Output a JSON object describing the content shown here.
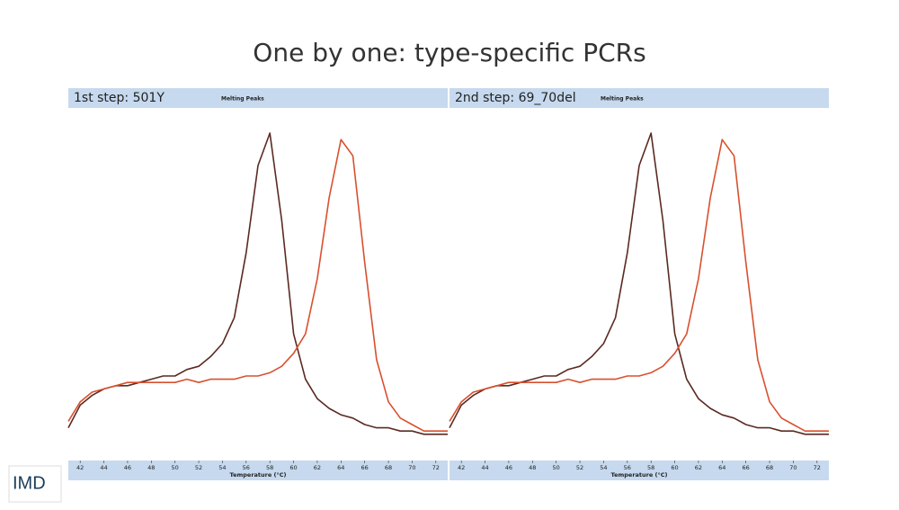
{
  "title": "One by one: type-specific PCRs",
  "logo": "IMD",
  "chart_data": [
    {
      "type": "line",
      "title": "1st step: 501Y",
      "subtitle": "Melting Peaks",
      "xlabel": "Temperature (°C)",
      "x": [
        41,
        42,
        43,
        44,
        45,
        46,
        47,
        48,
        49,
        50,
        51,
        52,
        53,
        54,
        55,
        56,
        57,
        58,
        59,
        60,
        61,
        62,
        63,
        64,
        65,
        66,
        67,
        68,
        69,
        70,
        71,
        72,
        73
      ],
      "series": [
        {
          "color": "#5a2a22",
          "values": [
            0.04,
            0.11,
            0.14,
            0.16,
            0.17,
            0.17,
            0.18,
            0.19,
            0.2,
            0.2,
            0.22,
            0.23,
            0.26,
            0.3,
            0.38,
            0.58,
            0.85,
            0.95,
            0.68,
            0.33,
            0.19,
            0.13,
            0.1,
            0.08,
            0.07,
            0.05,
            0.04,
            0.04,
            0.03,
            0.03,
            0.02,
            0.02,
            0.02
          ]
        },
        {
          "color": "#d9502e",
          "values": [
            0.06,
            0.12,
            0.15,
            0.16,
            0.17,
            0.18,
            0.18,
            0.18,
            0.18,
            0.18,
            0.19,
            0.18,
            0.19,
            0.19,
            0.19,
            0.2,
            0.2,
            0.21,
            0.23,
            0.27,
            0.33,
            0.5,
            0.75,
            0.93,
            0.88,
            0.55,
            0.25,
            0.12,
            0.07,
            0.05,
            0.03,
            0.03,
            0.03
          ]
        }
      ],
      "xlim": [
        41,
        73
      ],
      "ylim": [
        0,
        1
      ],
      "xticks": [
        42,
        44,
        46,
        48,
        50,
        52,
        54,
        56,
        58,
        60,
        62,
        64,
        66,
        68,
        70,
        72
      ]
    },
    {
      "type": "line",
      "title": "2nd step: 69_70del",
      "subtitle": "Melting Peaks",
      "xlabel": "Temperature (°C)",
      "x": [
        41,
        42,
        43,
        44,
        45,
        46,
        47,
        48,
        49,
        50,
        51,
        52,
        53,
        54,
        55,
        56,
        57,
        58,
        59,
        60,
        61,
        62,
        63,
        64,
        65,
        66,
        67,
        68,
        69,
        70,
        71,
        72,
        73
      ],
      "series": [
        {
          "color": "#5a2a22",
          "values": [
            0.04,
            0.11,
            0.14,
            0.16,
            0.17,
            0.17,
            0.18,
            0.19,
            0.2,
            0.2,
            0.22,
            0.23,
            0.26,
            0.3,
            0.38,
            0.58,
            0.85,
            0.95,
            0.68,
            0.33,
            0.19,
            0.13,
            0.1,
            0.08,
            0.07,
            0.05,
            0.04,
            0.04,
            0.03,
            0.03,
            0.02,
            0.02,
            0.02
          ]
        },
        {
          "color": "#d9502e",
          "values": [
            0.06,
            0.12,
            0.15,
            0.16,
            0.17,
            0.18,
            0.18,
            0.18,
            0.18,
            0.18,
            0.19,
            0.18,
            0.19,
            0.19,
            0.19,
            0.2,
            0.2,
            0.21,
            0.23,
            0.27,
            0.33,
            0.5,
            0.75,
            0.93,
            0.88,
            0.55,
            0.25,
            0.12,
            0.07,
            0.05,
            0.03,
            0.03,
            0.03
          ]
        }
      ],
      "xlim": [
        41,
        73
      ],
      "ylim": [
        0,
        1
      ],
      "xticks": [
        42,
        44,
        46,
        48,
        50,
        52,
        54,
        56,
        58,
        60,
        62,
        64,
        66,
        68,
        70,
        72
      ]
    }
  ]
}
